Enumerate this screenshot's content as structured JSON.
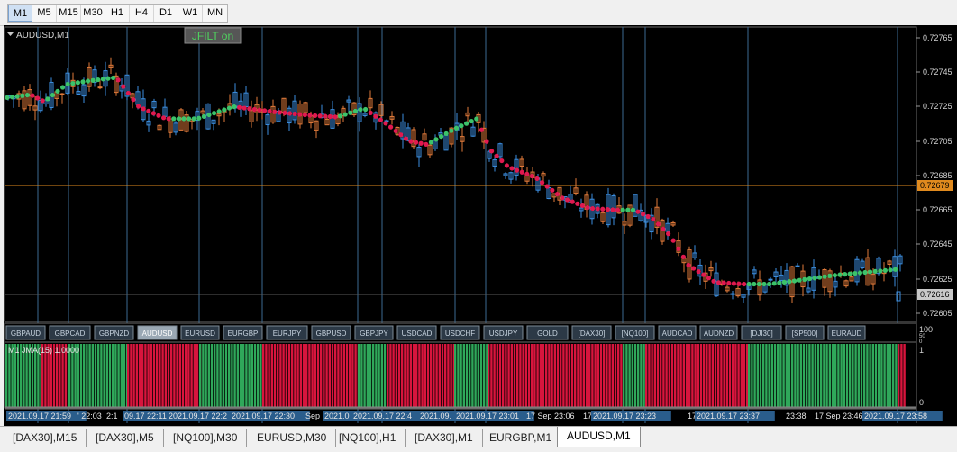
{
  "toolbar": {
    "timeframes": [
      "M1",
      "M5",
      "M15",
      "M30",
      "H1",
      "H4",
      "D1",
      "W1",
      "MN"
    ],
    "active": "M1"
  },
  "chart": {
    "symbol_label": "AUDUSD,M1",
    "jfilt_button": "JFILT on",
    "price_axis": [
      "0.72765",
      "0.72745",
      "0.72725",
      "0.72705",
      "0.72685",
      "0.72665",
      "0.72645",
      "0.72625",
      "0.72605"
    ],
    "ask_price": "0.72679",
    "bid_price": "0.72616",
    "sub_axis": {
      "top": "100",
      "middle": "50",
      "low": "0"
    },
    "symbol_buttons": [
      "GBPAUD",
      "GBPCAD",
      "GBPNZD",
      "AUDUSD",
      "EURUSD",
      "EURGBP",
      "EURJPY",
      "GBPUSD",
      "GBPJPY",
      "USDCAD",
      "USDCHF",
      "USDJPY",
      "GOLD",
      "[DAX30]",
      "[NQ100]",
      "AUDCAD",
      "AUDNZD",
      "[DJI30]",
      "[SP500]",
      "EURAUD"
    ],
    "active_symbol": "AUDUSD",
    "indicator_label": "M1 JMA(15) 1.0000",
    "indicator_axis": {
      "top": "1",
      "bottom": "0"
    },
    "time_labels": [
      "2021.09.17 21:59",
      "' 22:03",
      "2:1",
      "09.17 22:11",
      "2021.09.17 22:2",
      "2021.09.17 22:30",
      "Sep",
      "2021.0",
      "2021.09.17 22:4",
      "2021.09.",
      "2021.09.17 23:01",
      "17 Sep 23:06",
      "17",
      "2021.09.17 23:23",
      "17 S",
      "2021.09.17 23:37",
      "23:38",
      "17 Sep 23:46",
      "2021.09.17 23:58"
    ]
  },
  "bottom_tabs": [
    "[DAX30],M15",
    "[DAX30],M5",
    "[NQ100],M30",
    "EURUSD,M30",
    "[NQ100],H1",
    "[DAX30],M1",
    "EURGBP,M1",
    "AUDUSD,M1"
  ],
  "active_tab": "AUDUSD,M1"
}
